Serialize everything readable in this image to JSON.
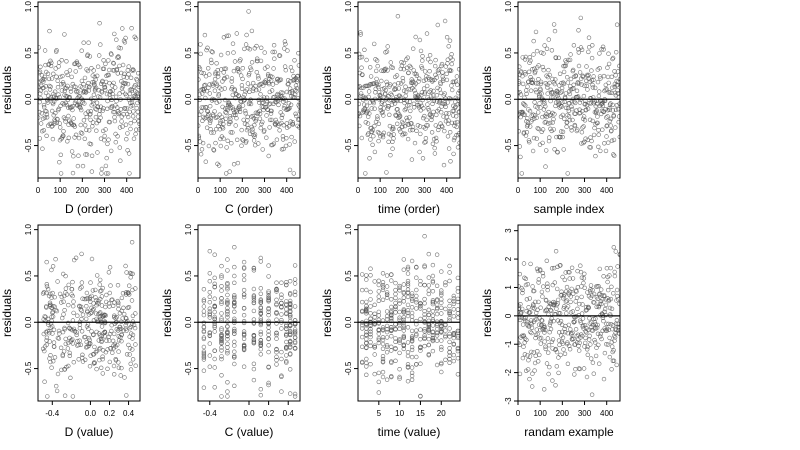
{
  "ylabel": "residuals",
  "chart_data": [
    {
      "type": "scatter",
      "xlabel": "D (order)",
      "ylabel": "residuals",
      "xlim": [
        0,
        460
      ],
      "ylim": [
        -0.85,
        1.05
      ],
      "xticks": [
        0,
        100,
        200,
        300,
        400
      ],
      "yticks": [
        -0.5,
        0.0,
        0.5,
        1.0
      ],
      "ytick_labels": [
        "-0.5",
        "0.0",
        "0.5",
        "1.0"
      ],
      "reference_line": 0,
      "x_kind": "index",
      "n": 460,
      "sd": 0.3
    },
    {
      "type": "scatter",
      "xlabel": "C (order)",
      "ylabel": "residuals",
      "xlim": [
        0,
        460
      ],
      "ylim": [
        -0.85,
        1.05
      ],
      "xticks": [
        0,
        100,
        200,
        300,
        400
      ],
      "yticks": [
        -0.5,
        0.0,
        0.5,
        1.0
      ],
      "ytick_labels": [
        "-0.5",
        "0.0",
        "0.5",
        "1.0"
      ],
      "reference_line": 0,
      "x_kind": "index",
      "n": 460,
      "sd": 0.3
    },
    {
      "type": "scatter",
      "xlabel": "time (order)",
      "ylabel": "residuals",
      "xlim": [
        0,
        460
      ],
      "ylim": [
        -0.85,
        1.05
      ],
      "xticks": [
        0,
        100,
        200,
        300,
        400
      ],
      "yticks": [
        -0.5,
        0.0,
        0.5,
        1.0
      ],
      "ytick_labels": [
        "-0.5",
        "0.0",
        "0.5",
        "1.0"
      ],
      "reference_line": 0,
      "x_kind": "index",
      "n": 460,
      "sd": 0.3
    },
    {
      "type": "scatter",
      "xlabel": "sample index",
      "ylabel": "residuals",
      "xlim": [
        0,
        460
      ],
      "ylim": [
        -0.85,
        1.05
      ],
      "xticks": [
        0,
        100,
        200,
        300,
        400
      ],
      "yticks": [
        -0.5,
        0.0,
        0.5,
        1.0
      ],
      "ytick_labels": [
        "-0.5",
        "0.0",
        "0.5",
        "1.0"
      ],
      "reference_line": 0,
      "x_kind": "index",
      "n": 460,
      "sd": 0.3
    },
    {
      "type": "scatter",
      "xlabel": "D (value)",
      "ylabel": "residuals",
      "xlim": [
        -0.55,
        0.52
      ],
      "ylim": [
        -0.85,
        1.05
      ],
      "xticks": [
        -0.4,
        0.0,
        0.2,
        0.4
      ],
      "xtick_labels": [
        "-0.4",
        "0.0",
        "0.2",
        "0.4"
      ],
      "yticks": [
        -0.5,
        0.0,
        0.5,
        1.0
      ],
      "ytick_labels": [
        "-0.5",
        "0.0",
        "0.5",
        "1.0"
      ],
      "reference_line": 0,
      "x_kind": "random",
      "x_range": [
        -0.5,
        0.48
      ],
      "n": 400,
      "sd": 0.3
    },
    {
      "type": "scatter",
      "xlabel": "C (value)",
      "ylabel": "residuals",
      "xlim": [
        -0.52,
        0.52
      ],
      "ylim": [
        -0.85,
        1.05
      ],
      "xticks": [
        -0.4,
        0.0,
        0.2,
        0.4
      ],
      "xtick_labels": [
        "-0.4",
        "0.0",
        "0.2",
        "0.4"
      ],
      "yticks": [
        -0.5,
        0.0,
        0.5,
        1.0
      ],
      "ytick_labels": [
        "-0.5",
        "0.0",
        "0.5",
        "1.0"
      ],
      "reference_line": 0,
      "x_kind": "discrete",
      "x_levels": [
        -0.46,
        -0.4,
        -0.35,
        -0.28,
        -0.22,
        -0.15,
        -0.05,
        0.05,
        0.12,
        0.2,
        0.28,
        0.33,
        0.38,
        0.42,
        0.47
      ],
      "n": 400,
      "sd": 0.3
    },
    {
      "type": "scatter",
      "xlabel": "time (value)",
      "ylabel": "residuals",
      "xlim": [
        0,
        24.5
      ],
      "ylim": [
        -0.85,
        1.05
      ],
      "xticks": [
        5,
        10,
        15,
        20
      ],
      "yticks": [
        -0.5,
        0.0,
        0.5,
        1.0
      ],
      "ytick_labels": [
        "-0.5",
        "0.0",
        "0.5",
        "1.0"
      ],
      "reference_line": 0,
      "x_kind": "discrete",
      "x_levels": [
        1,
        2,
        3,
        4,
        5,
        6,
        7,
        8,
        9,
        10,
        11,
        12,
        13,
        14,
        15,
        16,
        17,
        18,
        19,
        20,
        21,
        22,
        23,
        24
      ],
      "n": 460,
      "sd": 0.3
    },
    {
      "type": "scatter",
      "xlabel": "randam example",
      "ylabel": "residuals",
      "xlim": [
        0,
        460
      ],
      "ylim": [
        -3,
        3.2
      ],
      "xticks": [
        0,
        100,
        200,
        300,
        400
      ],
      "yticks": [
        -3,
        -2,
        -1,
        0,
        1,
        2,
        3
      ],
      "reference_line": 0,
      "x_kind": "index",
      "n": 460,
      "sd": 1.0
    }
  ]
}
